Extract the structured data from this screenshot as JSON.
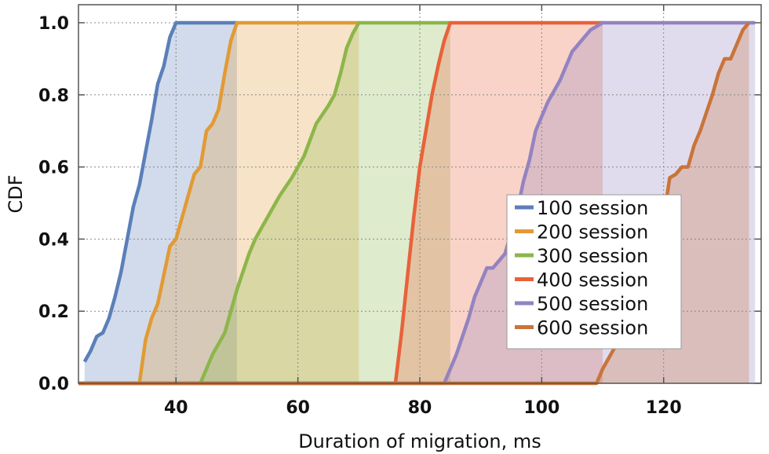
{
  "chart_data": {
    "type": "area",
    "title": "",
    "xlabel": "Duration of migration, ms",
    "ylabel": "CDF",
    "xlim": [
      24,
      136
    ],
    "ylim": [
      0,
      1.05
    ],
    "xticks": [
      40,
      60,
      80,
      100,
      120
    ],
    "yticks": [
      0.0,
      0.2,
      0.4,
      0.6,
      0.8,
      1.0
    ],
    "ytick_labels": [
      "0.0",
      "0.2",
      "0.4",
      "0.6",
      "0.8",
      "1.0"
    ],
    "grid": true,
    "legend_position": "right",
    "series": [
      {
        "name": "100 session",
        "color": "#5b7fb8",
        "fill": "#dbe3ee",
        "x": [
          25,
          26,
          27,
          28,
          29,
          30,
          31,
          32,
          33,
          34,
          35,
          36,
          37,
          38,
          39,
          40,
          50
        ],
        "y": [
          0.06,
          0.09,
          0.13,
          0.14,
          0.18,
          0.24,
          0.31,
          0.4,
          0.49,
          0.55,
          0.64,
          0.73,
          0.83,
          0.88,
          0.96,
          1.0,
          1.0
        ]
      },
      {
        "name": "200 session",
        "color": "#e29a35",
        "fill": "#e0d6c7",
        "x": [
          24,
          34,
          35,
          36,
          37,
          38,
          39,
          40,
          41,
          42,
          43,
          44,
          45,
          46,
          47,
          48,
          49,
          50,
          70
        ],
        "y": [
          0.0,
          0.0,
          0.12,
          0.18,
          0.22,
          0.3,
          0.38,
          0.4,
          0.46,
          0.52,
          0.58,
          0.6,
          0.7,
          0.72,
          0.76,
          0.86,
          0.95,
          1.0,
          1.0
        ]
      },
      {
        "name": "300 session",
        "color": "#8cb64a",
        "fill": "#c8d1a2",
        "x": [
          24,
          44,
          46,
          48,
          50,
          52,
          53,
          55,
          57,
          59,
          61,
          63,
          65,
          66,
          67,
          68,
          69,
          70,
          85
        ],
        "y": [
          0.0,
          0.0,
          0.08,
          0.14,
          0.26,
          0.36,
          0.4,
          0.46,
          0.52,
          0.57,
          0.63,
          0.72,
          0.77,
          0.8,
          0.86,
          0.93,
          0.97,
          1.0,
          1.0
        ]
      },
      {
        "name": "400 session",
        "color": "#e8623a",
        "fill": "#d4b07f",
        "x": [
          24,
          76,
          77,
          78,
          79,
          80,
          81,
          82,
          83,
          84,
          85,
          110
        ],
        "y": [
          0.0,
          0.0,
          0.14,
          0.3,
          0.46,
          0.6,
          0.7,
          0.8,
          0.88,
          0.95,
          1.0,
          1.0
        ]
      },
      {
        "name": "500 session",
        "color": "#9383c0",
        "fill": "#c3a689",
        "x": [
          24,
          84,
          86,
          88,
          89,
          90,
          91,
          92,
          94,
          96,
          97,
          98,
          99,
          100,
          101,
          103,
          104,
          105,
          106,
          107,
          108,
          109,
          110,
          135
        ],
        "y": [
          0.0,
          0.0,
          0.08,
          0.18,
          0.24,
          0.28,
          0.32,
          0.32,
          0.36,
          0.48,
          0.56,
          0.62,
          0.7,
          0.74,
          0.78,
          0.84,
          0.88,
          0.92,
          0.94,
          0.96,
          0.98,
          0.99,
          1.0,
          1.0
        ]
      },
      {
        "name": "600 session",
        "color": "#c8743a",
        "fill": "#c98a55",
        "x": [
          24,
          109,
          110,
          111,
          113,
          115,
          117,
          118,
          119,
          120,
          121,
          122,
          123,
          124,
          125,
          126,
          127,
          128,
          129,
          130,
          131,
          132,
          133,
          134
        ],
        "y": [
          0.0,
          0.0,
          0.04,
          0.07,
          0.13,
          0.18,
          0.26,
          0.3,
          0.36,
          0.46,
          0.57,
          0.58,
          0.6,
          0.6,
          0.66,
          0.7,
          0.75,
          0.8,
          0.86,
          0.9,
          0.9,
          0.94,
          0.98,
          1.0
        ]
      }
    ]
  }
}
